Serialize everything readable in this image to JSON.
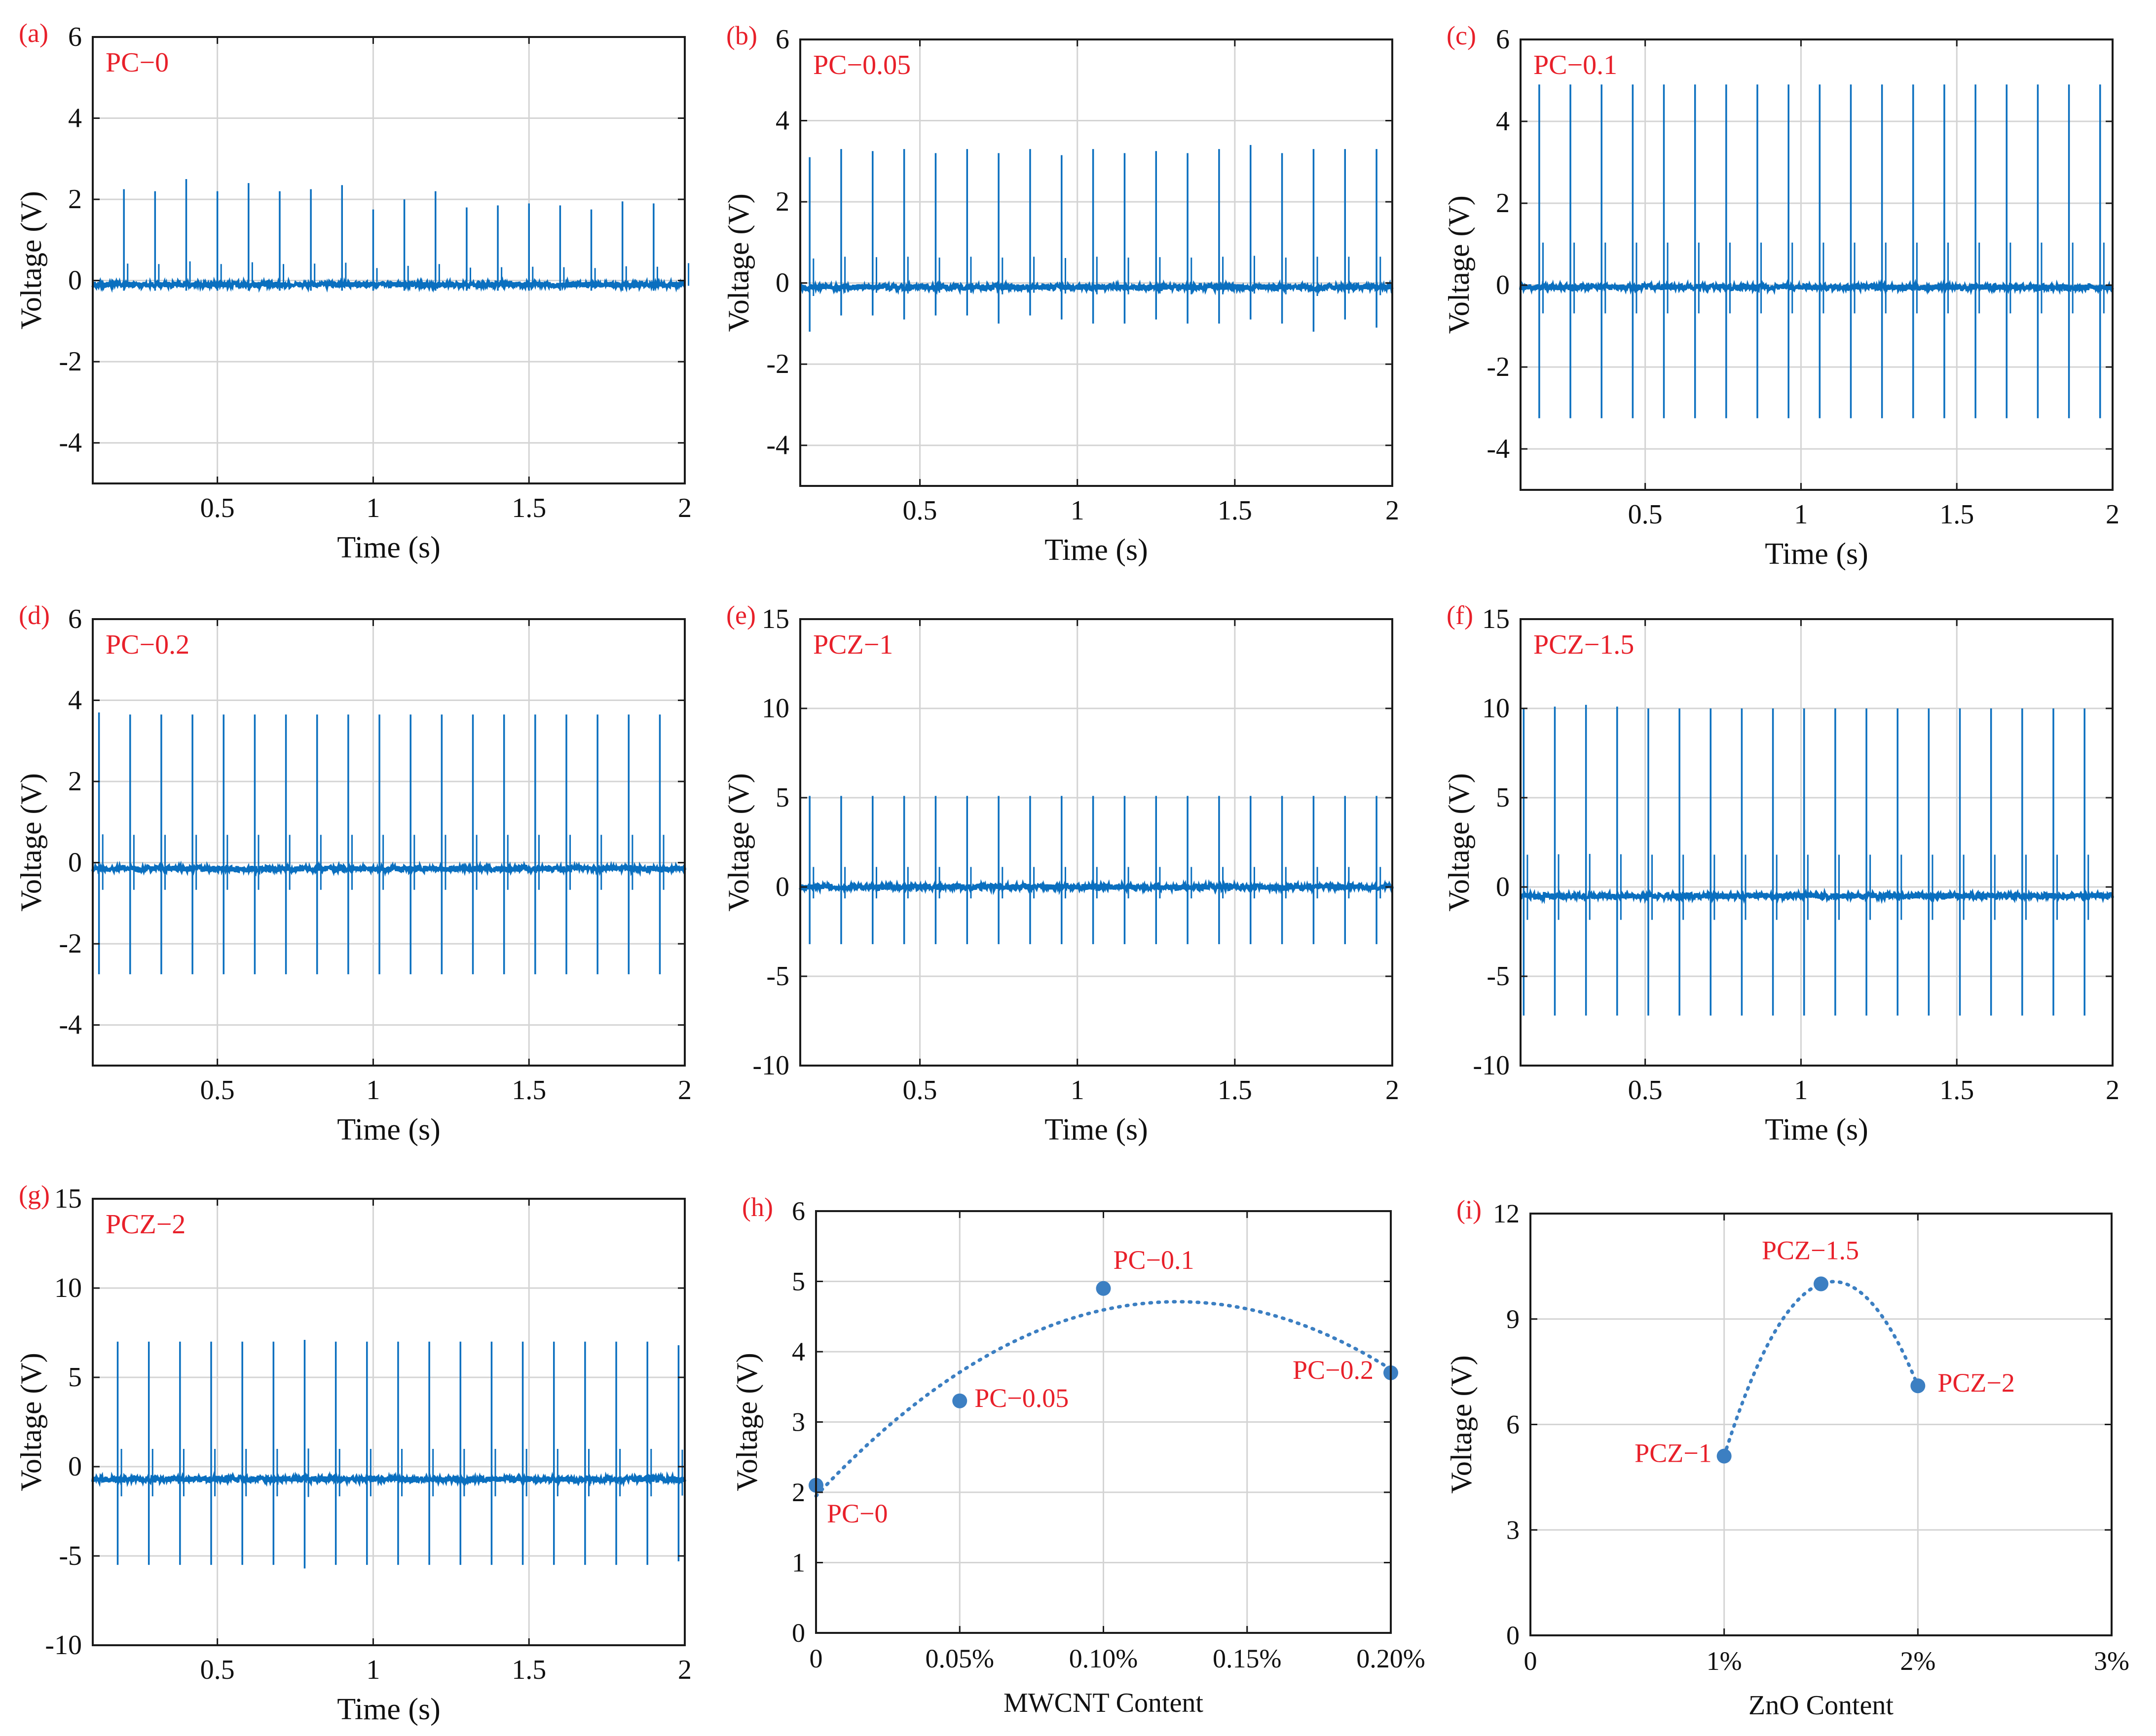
{
  "colors": {
    "signal": "#0a6fbf",
    "point": "#3c7fc2",
    "fit": "#3c7fc2",
    "label": "#e8202a",
    "axis": "#1a1a1a",
    "grid": "#d4d4d4",
    "text": "#111111"
  },
  "chart_data": [
    {
      "type": "line",
      "panel": "(a)",
      "name": "PC−0",
      "xlabel": "Time (s)",
      "ylabel": "Voltage (V)",
      "xlim": [
        0.1,
        2
      ],
      "ylim": [
        -5,
        6
      ],
      "xticks": [
        0.5,
        1,
        1.5,
        2
      ],
      "xtick_labels": [
        "0.5",
        "1",
        "1.5",
        "2"
      ],
      "yticks": [
        -4,
        -2,
        0,
        2,
        4,
        6
      ],
      "ytick_labels": [
        "-4",
        "-2",
        "0",
        "2",
        "4",
        "6"
      ],
      "grid": true,
      "baseline": -0.1,
      "pulse_start": 0.2,
      "pulse_period": 0.1,
      "pos_peaks": [
        2.25,
        2.2,
        2.5,
        2.2,
        2.4,
        2.2,
        2.25,
        2.35,
        1.75,
        2.0,
        2.2,
        1.8,
        1.85,
        1.9,
        1.85,
        1.75,
        1.95,
        1.9,
        2.3
      ],
      "neg_peaks": [
        -0.25,
        -0.25,
        -0.25,
        -0.25,
        -0.25,
        -0.25,
        -0.25,
        -0.25,
        -0.25,
        -0.25,
        -0.25,
        -0.25,
        -0.25,
        -0.25,
        -0.25,
        -0.25,
        -0.25,
        -0.25,
        -0.25
      ]
    },
    {
      "type": "line",
      "panel": "(b)",
      "name": "PC−0.05",
      "xlabel": "Time (s)",
      "ylabel": "Voltage (V)",
      "xlim": [
        0.12,
        2
      ],
      "ylim": [
        -5,
        6
      ],
      "xticks": [
        0.5,
        1,
        1.5,
        2
      ],
      "xtick_labels": [
        "0.5",
        "1",
        "1.5",
        "2"
      ],
      "yticks": [
        -4,
        -2,
        0,
        2,
        4,
        6
      ],
      "ytick_labels": [
        "-4",
        "-2",
        "0",
        "2",
        "4",
        "6"
      ],
      "grid": true,
      "baseline": -0.1,
      "pulse_start": 0.15,
      "pulse_period": 0.1,
      "pos_peaks": [
        3.1,
        3.3,
        3.25,
        3.3,
        3.2,
        3.3,
        3.2,
        3.3,
        3.15,
        3.3,
        3.2,
        3.25,
        3.2,
        3.3,
        3.4,
        3.2,
        3.3,
        3.3,
        3.3,
        3.05
      ],
      "neg_peaks": [
        -1.2,
        -0.8,
        -0.8,
        -0.9,
        -0.8,
        -0.8,
        -1.0,
        -0.8,
        -0.9,
        -1.0,
        -1.0,
        -0.9,
        -1.0,
        -1.0,
        -0.9,
        -1.0,
        -1.2,
        -0.9,
        -1.1,
        -1.2
      ]
    },
    {
      "type": "line",
      "panel": "(c)",
      "name": "PC−0.1",
      "xlabel": "Time (s)",
      "ylabel": "Voltage (V)",
      "xlim": [
        0.1,
        2
      ],
      "ylim": [
        -5,
        6
      ],
      "xticks": [
        0.5,
        1,
        1.5,
        2
      ],
      "xtick_labels": [
        "0.5",
        "1",
        "1.5",
        "2"
      ],
      "yticks": [
        -4,
        -2,
        0,
        2,
        4,
        6
      ],
      "ytick_labels": [
        "-4",
        "-2",
        "0",
        "2",
        "4",
        "6"
      ],
      "grid": true,
      "baseline": -0.05,
      "pulse_start": 0.16,
      "pulse_period": 0.1,
      "pos_peaks": [
        4.9,
        4.9,
        4.9,
        4.9,
        4.9,
        4.9,
        4.9,
        4.9,
        4.9,
        4.9,
        4.9,
        4.9,
        4.9,
        4.9,
        4.9,
        4.9,
        4.9,
        4.9,
        4.9
      ],
      "neg_peaks": [
        -3.25,
        -3.25,
        -3.25,
        -3.25,
        -3.25,
        -3.25,
        -3.25,
        -3.25,
        -3.25,
        -3.25,
        -3.25,
        -3.25,
        -3.25,
        -3.25,
        -3.25,
        -3.25,
        -3.25,
        -3.25,
        -3.25
      ]
    },
    {
      "type": "line",
      "panel": "(d)",
      "name": "PC−0.2",
      "xlabel": "Time (s)",
      "ylabel": "Voltage (V)",
      "xlim": [
        0.1,
        2
      ],
      "ylim": [
        -5,
        6
      ],
      "xticks": [
        0.5,
        1,
        1.5,
        2
      ],
      "xtick_labels": [
        "0.5",
        "1",
        "1.5",
        "2"
      ],
      "yticks": [
        -4,
        -2,
        0,
        2,
        4,
        6
      ],
      "ytick_labels": [
        "-4",
        "-2",
        "0",
        "2",
        "4",
        "6"
      ],
      "grid": true,
      "baseline": -0.15,
      "pulse_start": 0.12,
      "pulse_period": 0.1,
      "pos_peaks": [
        3.7,
        3.65,
        3.65,
        3.65,
        3.65,
        3.65,
        3.65,
        3.65,
        3.65,
        3.65,
        3.65,
        3.65,
        3.65,
        3.65,
        3.65,
        3.65,
        3.65,
        3.65,
        3.65,
        3.65
      ],
      "neg_peaks": [
        -2.75,
        -2.75,
        -2.75,
        -2.75,
        -2.75,
        -2.75,
        -2.75,
        -2.75,
        -2.75,
        -2.75,
        -2.75,
        -2.75,
        -2.75,
        -2.75,
        -2.75,
        -2.75,
        -2.75,
        -2.75,
        -2.75,
        -2.75
      ]
    },
    {
      "type": "line",
      "panel": "(e)",
      "name": "PCZ−1",
      "xlabel": "Time (s)",
      "ylabel": "Voltage (V)",
      "xlim": [
        0.12,
        2
      ],
      "ylim": [
        -10,
        15
      ],
      "xticks": [
        0.5,
        1,
        1.5,
        2
      ],
      "xtick_labels": [
        "0.5",
        "1",
        "1.5",
        "2"
      ],
      "yticks": [
        -10,
        -5,
        0,
        5,
        10,
        15
      ],
      "ytick_labels": [
        "-10",
        "-5",
        "0",
        "5",
        "10",
        "15"
      ],
      "grid": true,
      "baseline": 0,
      "pulse_start": 0.15,
      "pulse_period": 0.1,
      "pos_peaks": [
        5.1,
        5.1,
        5.1,
        5.1,
        5.1,
        5.1,
        5.1,
        5.1,
        5.1,
        5.1,
        5.1,
        5.1,
        5.1,
        5.1,
        5.1,
        5.1,
        5.1,
        5.1,
        5.1,
        5.1
      ],
      "neg_peaks": [
        -3.2,
        -3.2,
        -3.2,
        -3.2,
        -3.2,
        -3.2,
        -3.2,
        -3.2,
        -3.2,
        -3.2,
        -3.2,
        -3.2,
        -3.2,
        -3.2,
        -3.2,
        -3.2,
        -3.2,
        -3.2,
        -3.2,
        -3.2
      ]
    },
    {
      "type": "line",
      "panel": "(f)",
      "name": "PCZ−1.5",
      "xlabel": "Time (s)",
      "ylabel": "Voltage (V)",
      "xlim": [
        0.1,
        2
      ],
      "ylim": [
        -10,
        15
      ],
      "xticks": [
        0.5,
        1,
        1.5,
        2
      ],
      "xtick_labels": [
        "0.5",
        "1",
        "1.5",
        "2"
      ],
      "yticks": [
        -10,
        -5,
        0,
        5,
        10,
        15
      ],
      "ytick_labels": [
        "-10",
        "-5",
        "0",
        "5",
        "10",
        "15"
      ],
      "grid": true,
      "baseline": -0.5,
      "pulse_start": 0.11,
      "pulse_period": 0.1,
      "pos_peaks": [
        10.0,
        10.1,
        10.2,
        10.1,
        10.0,
        10.0,
        10.0,
        10.0,
        10.0,
        10.0,
        10.0,
        10.0,
        10.0,
        10.0,
        10.0,
        10.0,
        10.0,
        10.0,
        10.0,
        10.0
      ],
      "neg_peaks": [
        -7.2,
        -7.2,
        -7.2,
        -7.2,
        -7.2,
        -7.2,
        -7.2,
        -7.2,
        -7.2,
        -7.2,
        -7.2,
        -7.2,
        -7.2,
        -7.2,
        -7.2,
        -7.2,
        -7.2,
        -7.2,
        -7.2,
        -7.2
      ]
    },
    {
      "type": "line",
      "panel": "(g)",
      "name": "PCZ−2",
      "xlabel": "Time (s)",
      "ylabel": "Voltage (V)",
      "xlim": [
        0.1,
        2
      ],
      "ylim": [
        -10,
        15
      ],
      "xticks": [
        0.5,
        1,
        1.5,
        2
      ],
      "xtick_labels": [
        "0.5",
        "1",
        "1.5",
        "2"
      ],
      "yticks": [
        -10,
        -5,
        0,
        5,
        10,
        15
      ],
      "ytick_labels": [
        "-10",
        "-5",
        "0",
        "5",
        "10",
        "15"
      ],
      "grid": true,
      "baseline": -0.7,
      "pulse_start": 0.18,
      "pulse_period": 0.1,
      "pos_peaks": [
        7.0,
        7.0,
        7.0,
        7.0,
        7.0,
        7.0,
        7.1,
        7.0,
        7.0,
        7.0,
        7.0,
        7.0,
        7.0,
        7.0,
        7.0,
        7.0,
        7.0,
        7.0,
        6.8
      ],
      "neg_peaks": [
        -5.5,
        -5.5,
        -5.5,
        -5.5,
        -5.5,
        -5.5,
        -5.7,
        -5.5,
        -5.5,
        -5.5,
        -5.5,
        -5.5,
        -5.5,
        -5.5,
        -5.5,
        -5.5,
        -5.5,
        -5.5,
        -5.3
      ]
    },
    {
      "type": "scatter",
      "panel": "(h)",
      "xlabel": "MWCNT Content",
      "ylabel": "Voltage (V)",
      "xlim": [
        0,
        0.2
      ],
      "ylim": [
        0,
        6
      ],
      "xticks": [
        0,
        0.05,
        0.1,
        0.15,
        0.2
      ],
      "xtick_labels": [
        "0",
        "0.05%",
        "0.10%",
        "0.15%",
        "0.20%"
      ],
      "yticks": [
        0,
        1,
        2,
        3,
        4,
        5,
        6
      ],
      "ytick_labels": [
        "0",
        "1",
        "2",
        "3",
        "4",
        "5",
        "6"
      ],
      "grid": true,
      "points": [
        {
          "x": 0,
          "y": 2.1,
          "label": "PC−0"
        },
        {
          "x": 0.05,
          "y": 3.3,
          "label": "PC−0.05"
        },
        {
          "x": 0.1,
          "y": 4.9,
          "label": "PC−0.1"
        },
        {
          "x": 0.2,
          "y": 3.7,
          "label": "PC−0.2"
        }
      ],
      "fit": "quadratic"
    },
    {
      "type": "scatter",
      "panel": "(i)",
      "xlabel": "ZnO Content",
      "ylabel": "Voltage (V)",
      "xlim": [
        0,
        3
      ],
      "ylim": [
        0,
        12
      ],
      "xticks": [
        0,
        1,
        2,
        3
      ],
      "xtick_labels": [
        "0",
        "1%",
        "2%",
        "3%"
      ],
      "yticks": [
        0,
        3,
        6,
        9,
        12
      ],
      "ytick_labels": [
        "0",
        "3",
        "6",
        "9",
        "12"
      ],
      "grid": true,
      "points": [
        {
          "x": 1,
          "y": 5.1,
          "label": "PCZ−1"
        },
        {
          "x": 1.5,
          "y": 10.0,
          "label": "PCZ−1.5"
        },
        {
          "x": 2,
          "y": 7.1,
          "label": "PCZ−2"
        }
      ],
      "fit": "quadratic"
    }
  ]
}
